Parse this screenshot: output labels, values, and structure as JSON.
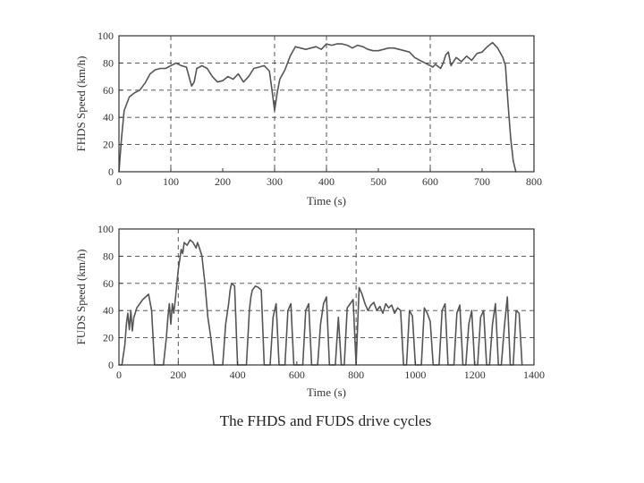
{
  "caption": "The FHDS and FUDS drive cycles",
  "colors": {
    "series": "#555555",
    "axis": "#333333",
    "grid": "#444444"
  },
  "chart_data": [
    {
      "type": "line",
      "title": "",
      "xlabel": "Time (s)",
      "ylabel": "FHDS Speed (km/h)",
      "xlim": [
        0,
        800
      ],
      "ylim": [
        0,
        100
      ],
      "xticks": [
        0,
        100,
        200,
        300,
        400,
        500,
        600,
        700,
        800
      ],
      "yticks": [
        0,
        20,
        40,
        60,
        80,
        100
      ],
      "hgrid": [
        20,
        40,
        60,
        80
      ],
      "vgrid": [
        100,
        300,
        400,
        600
      ],
      "grid": "dashed",
      "legend": "none",
      "series": [
        {
          "x": [
            0,
            5,
            10,
            20,
            30,
            40,
            50,
            60,
            70,
            80,
            90,
            100,
            110,
            120,
            130,
            135,
            140,
            145,
            150,
            160,
            170,
            180,
            190,
            200,
            210,
            220,
            230,
            240,
            250,
            260,
            270,
            280,
            290,
            295,
            300,
            305,
            310,
            320,
            330,
            340,
            350,
            360,
            370,
            380,
            390,
            400,
            410,
            420,
            430,
            440,
            450,
            460,
            470,
            480,
            490,
            500,
            510,
            520,
            530,
            540,
            550,
            560,
            570,
            580,
            590,
            600,
            605,
            610,
            620,
            625,
            630,
            635,
            640,
            650,
            660,
            670,
            680,
            690,
            700,
            710,
            720,
            730,
            740,
            745,
            750,
            755,
            760,
            765
          ],
          "y": [
            0,
            25,
            45,
            55,
            58,
            60,
            65,
            72,
            75,
            76,
            76,
            78,
            80,
            78,
            77,
            70,
            63,
            66,
            76,
            78,
            76,
            70,
            66,
            67,
            70,
            68,
            72,
            66,
            70,
            76,
            77,
            78,
            74,
            60,
            45,
            58,
            68,
            75,
            85,
            92,
            91,
            90,
            91,
            92,
            90,
            94,
            93,
            94,
            94,
            93,
            91,
            93,
            92,
            90,
            89,
            89,
            90,
            91,
            91,
            90,
            89,
            88,
            84,
            82,
            80,
            78,
            77,
            79,
            76,
            80,
            86,
            88,
            78,
            84,
            81,
            85,
            82,
            87,
            88,
            92,
            95,
            91,
            84,
            78,
            50,
            25,
            8,
            0
          ]
        }
      ]
    },
    {
      "type": "line",
      "title": "",
      "xlabel": "Time (s)",
      "ylabel": "FUDS Speed (km/h)",
      "xlim": [
        0,
        1400
      ],
      "ylim": [
        0,
        100
      ],
      "xticks": [
        0,
        200,
        400,
        600,
        800,
        1000,
        1200,
        1400
      ],
      "yticks": [
        0,
        20,
        40,
        60,
        80,
        100
      ],
      "hgrid": [
        20,
        40,
        60,
        80
      ],
      "vgrid": [
        200,
        800
      ],
      "grid": "dashed",
      "legend": "none",
      "series": [
        {
          "x": [
            0,
            10,
            20,
            25,
            30,
            35,
            40,
            45,
            50,
            55,
            60,
            70,
            80,
            90,
            100,
            110,
            120,
            125,
            130,
            140,
            150,
            160,
            165,
            170,
            175,
            180,
            185,
            190,
            200,
            210,
            215,
            220,
            230,
            240,
            250,
            260,
            265,
            270,
            280,
            290,
            300,
            310,
            320,
            330,
            340,
            350,
            360,
            370,
            375,
            380,
            390,
            400,
            410,
            420,
            430,
            440,
            445,
            450,
            460,
            470,
            480,
            490,
            500,
            510,
            520,
            530,
            540,
            545,
            550,
            560,
            570,
            580,
            590,
            600,
            610,
            620,
            630,
            640,
            650,
            660,
            670,
            680,
            690,
            700,
            710,
            720,
            730,
            740,
            750,
            760,
            770,
            780,
            790,
            800,
            810,
            820,
            830,
            840,
            850,
            860,
            870,
            880,
            890,
            900,
            910,
            920,
            930,
            940,
            950,
            960,
            970,
            980,
            990,
            1000,
            1010,
            1020,
            1030,
            1040,
            1050,
            1060,
            1070,
            1080,
            1090,
            1100,
            1110,
            1120,
            1130,
            1140,
            1150,
            1160,
            1170,
            1180,
            1190,
            1200,
            1210,
            1220,
            1230,
            1240,
            1250,
            1260,
            1270,
            1280,
            1290,
            1300,
            1310,
            1320,
            1330,
            1340,
            1350,
            1360
          ],
          "y": [
            0,
            0,
            15,
            30,
            38,
            26,
            40,
            25,
            35,
            38,
            42,
            45,
            48,
            50,
            52,
            40,
            0,
            0,
            0,
            0,
            0,
            20,
            35,
            45,
            30,
            45,
            38,
            48,
            70,
            85,
            82,
            90,
            88,
            92,
            90,
            86,
            90,
            87,
            80,
            60,
            35,
            20,
            0,
            0,
            0,
            0,
            30,
            45,
            55,
            60,
            58,
            0,
            0,
            0,
            0,
            40,
            50,
            55,
            58,
            57,
            55,
            0,
            0,
            0,
            35,
            45,
            0,
            0,
            0,
            0,
            40,
            45,
            0,
            0,
            0,
            0,
            40,
            45,
            0,
            0,
            0,
            30,
            45,
            50,
            0,
            0,
            0,
            35,
            0,
            0,
            42,
            45,
            48,
            0,
            57,
            52,
            45,
            40,
            44,
            46,
            40,
            43,
            38,
            45,
            42,
            44,
            38,
            42,
            40,
            0,
            0,
            40,
            36,
            0,
            0,
            0,
            42,
            38,
            32,
            0,
            0,
            0,
            40,
            45,
            0,
            0,
            0,
            38,
            44,
            0,
            0,
            30,
            40,
            0,
            0,
            35,
            40,
            0,
            0,
            30,
            45,
            0,
            0,
            28,
            50,
            0,
            0,
            40,
            38,
            0
          ]
        }
      ]
    }
  ]
}
